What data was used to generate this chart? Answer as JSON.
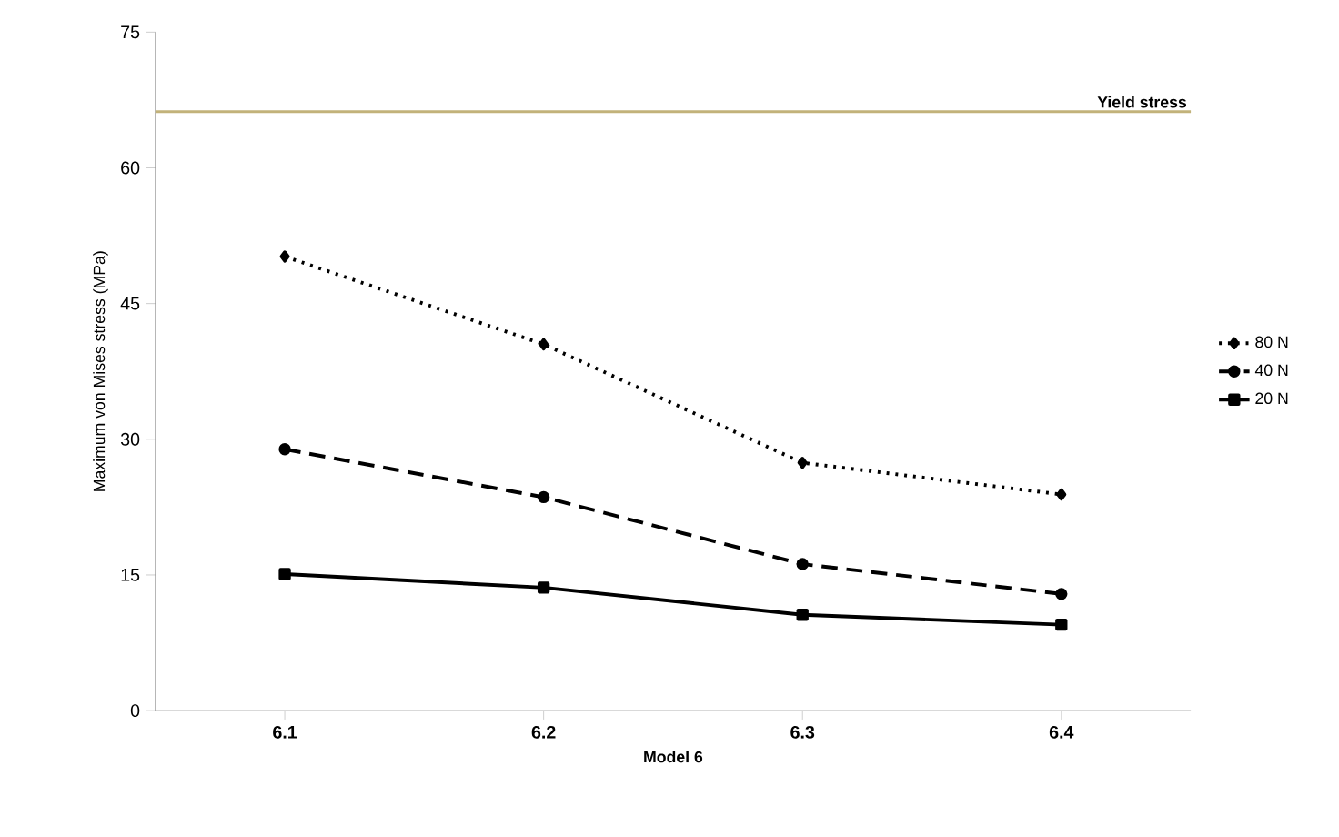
{
  "chart_data": {
    "type": "line",
    "xlabel": "Model 6",
    "ylabel": "Maximum von Mises stress (MPa)",
    "categories": [
      "6.1",
      "6.2",
      "6.3",
      "6.4"
    ],
    "series": [
      {
        "name": "80 N",
        "color": "#000000",
        "values": [
          50.2,
          40.5,
          27.4,
          23.9
        ],
        "marker": "diamond",
        "line_style": "dotted"
      },
      {
        "name": "40 N",
        "color": "#000000",
        "values": [
          28.9,
          23.6,
          16.2,
          12.9
        ],
        "marker": "circle",
        "line_style": "dashed"
      },
      {
        "name": "20 N",
        "color": "#000000",
        "values": [
          15.1,
          13.6,
          10.6,
          9.5
        ],
        "marker": "square",
        "line_style": "solid"
      }
    ],
    "ylim": [
      0,
      75
    ],
    "yticks": [
      0,
      15,
      30,
      45,
      60,
      75
    ],
    "ref_lines": [
      {
        "axis": "y",
        "value": 66.2,
        "label": "Yield stress",
        "color": "#c2b27a"
      }
    ],
    "legend": "right",
    "grid": false
  }
}
